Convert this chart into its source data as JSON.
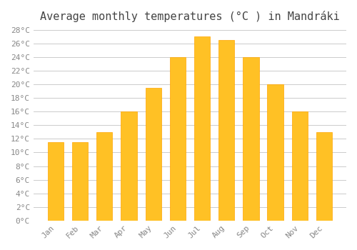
{
  "months": [
    "Jan",
    "Feb",
    "Mar",
    "Apr",
    "May",
    "Jun",
    "Jul",
    "Aug",
    "Sep",
    "Oct",
    "Nov",
    "Dec"
  ],
  "temperatures": [
    11.5,
    11.5,
    13.0,
    16.0,
    19.5,
    24.0,
    27.0,
    26.5,
    24.0,
    20.0,
    16.0,
    13.0
  ],
  "bar_color": "#FFC125",
  "bar_edge_color": "#FFA500",
  "background_color": "#FFFFFF",
  "grid_color": "#CCCCCC",
  "title": "Average monthly temperatures (°C ) in Mandráki",
  "title_fontsize": 11,
  "title_color": "#444444",
  "tick_label_color": "#888888",
  "axis_label_color": "#888888",
  "ylim": [
    0,
    28
  ],
  "ytick_step": 2,
  "font_family": "monospace"
}
